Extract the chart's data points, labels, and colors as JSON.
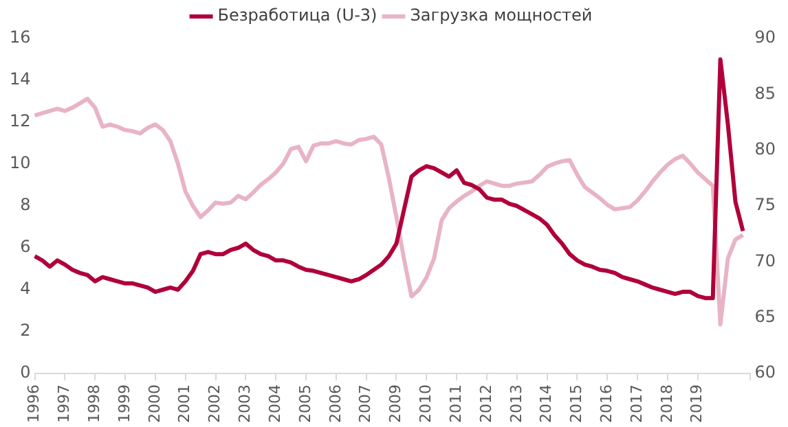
{
  "chart_data": {
    "type": "line",
    "categories": [
      "1996",
      null,
      null,
      null,
      "1997",
      null,
      null,
      null,
      "1998",
      null,
      null,
      null,
      "1999",
      null,
      null,
      null,
      "2000",
      null,
      null,
      null,
      "2001",
      null,
      null,
      null,
      "2002",
      null,
      null,
      null,
      "2003",
      null,
      null,
      null,
      "2004",
      null,
      null,
      null,
      "2005",
      null,
      null,
      null,
      "2006",
      null,
      null,
      null,
      "2007",
      null,
      null,
      null,
      "2009",
      null,
      null,
      null,
      "2010",
      null,
      null,
      null,
      "2011",
      null,
      null,
      null,
      "2012",
      null,
      null,
      null,
      "2013",
      null,
      null,
      null,
      "2014",
      null,
      null,
      null,
      "2015",
      null,
      null,
      null,
      "2016",
      null,
      null,
      null,
      "2017",
      null,
      null,
      null,
      "2018",
      null,
      null,
      null,
      "2019",
      null,
      null,
      null,
      null,
      null,
      null,
      null
    ],
    "series": [
      {
        "name": "Безработица (U-3)",
        "color": "#b0003a",
        "values": [
          5.6,
          5.4,
          5.1,
          5.4,
          5.2,
          4.95,
          4.8,
          4.7,
          4.4,
          4.6,
          4.5,
          4.4,
          4.3,
          4.3,
          4.2,
          4.1,
          3.9,
          4.0,
          4.1,
          4.0,
          4.4,
          4.9,
          5.7,
          5.8,
          5.7,
          5.7,
          5.9,
          6.0,
          6.2,
          5.9,
          5.7,
          5.6,
          5.4,
          5.4,
          5.3,
          5.1,
          4.95,
          4.9,
          4.8,
          4.7,
          4.6,
          4.5,
          4.4,
          4.5,
          4.7,
          4.95,
          5.2,
          5.6,
          6.2,
          7.8,
          9.4,
          9.7,
          9.9,
          9.8,
          9.6,
          9.4,
          9.7,
          9.1,
          9.0,
          8.8,
          8.4,
          8.3,
          8.3,
          8.1,
          8.0,
          7.8,
          7.6,
          7.4,
          7.1,
          6.6,
          6.2,
          5.7,
          5.4,
          5.2,
          5.1,
          4.95,
          4.9,
          4.8,
          4.6,
          4.5,
          4.4,
          4.25,
          4.1,
          4.0,
          3.9,
          3.8,
          3.9,
          3.9,
          3.7,
          3.6,
          3.6,
          15.0,
          11.9,
          8.2,
          6.8,
          null
        ]
      },
      {
        "name": "Загрузка мощностей",
        "color": "#e8b4c4",
        "axis": "y2",
        "values": [
          83.1,
          83.3,
          83.5,
          83.7,
          83.5,
          83.8,
          84.2,
          84.6,
          83.8,
          82.1,
          82.3,
          82.1,
          81.8,
          81.7,
          81.5,
          82.0,
          82.3,
          81.8,
          80.8,
          78.8,
          76.3,
          75.0,
          74.0,
          74.6,
          75.3,
          75.2,
          75.3,
          75.9,
          75.6,
          76.2,
          76.9,
          77.4,
          78.0,
          78.8,
          80.1,
          80.3,
          79.0,
          80.4,
          80.6,
          80.6,
          80.8,
          80.6,
          80.5,
          80.9,
          81.0,
          81.2,
          80.5,
          77.5,
          74.0,
          70.3,
          66.9,
          67.5,
          68.6,
          70.3,
          73.7,
          74.8,
          75.4,
          75.9,
          76.3,
          76.8,
          77.2,
          77.0,
          76.8,
          76.8,
          77.0,
          77.1,
          77.2,
          77.8,
          78.5,
          78.8,
          79.0,
          79.1,
          77.8,
          76.7,
          76.2,
          75.7,
          75.1,
          74.7,
          74.8,
          74.9,
          75.5,
          76.3,
          77.2,
          78.0,
          78.7,
          79.2,
          79.5,
          78.8,
          78.0,
          77.4,
          76.8,
          64.4,
          70.3,
          72.0,
          72.4,
          null
        ]
      }
    ],
    "ylim": [
      0,
      16
    ],
    "yticks": [
      0,
      2,
      4,
      6,
      8,
      10,
      12,
      14,
      16
    ],
    "y2lim": [
      60,
      90
    ],
    "y2ticks": [
      60,
      65,
      70,
      75,
      80,
      85,
      90
    ],
    "grid": false,
    "legend": "top",
    "marker": "none",
    "line_style": "solid"
  }
}
